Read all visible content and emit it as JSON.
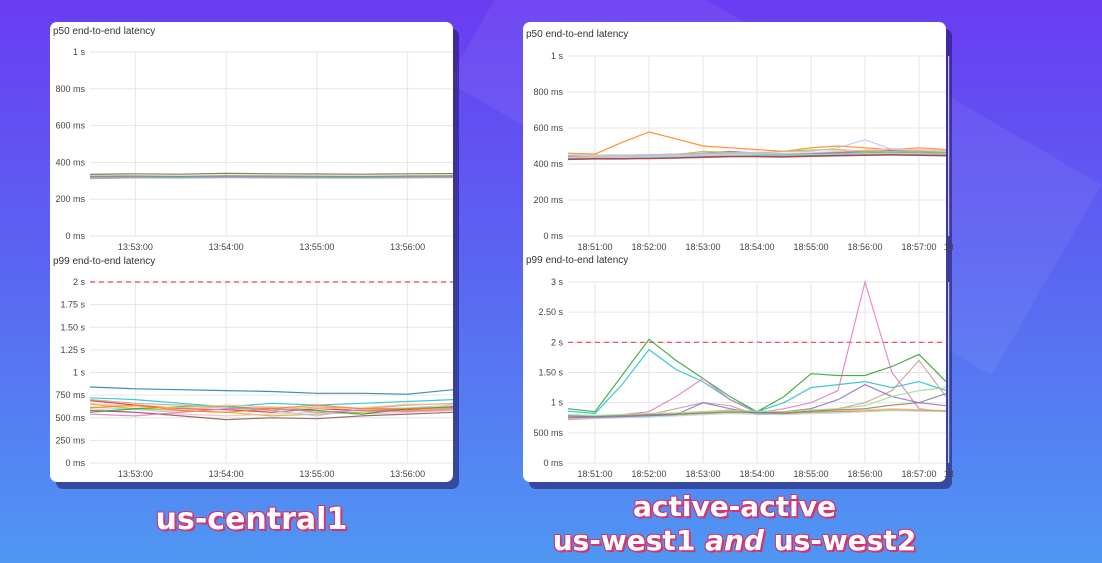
{
  "captions": {
    "left": "us-central1",
    "right_line1": "active-active",
    "right_line2_a": "us-west1",
    "right_line2_and": "and",
    "right_line2_b": "us-west2"
  },
  "colors": [
    "#8c564b",
    "#1f77b4",
    "#ff7f0e",
    "#2ca02c",
    "#d62728",
    "#9467bd",
    "#17becf",
    "#bcbd22",
    "#7f7f7f",
    "#e377c2",
    "#aec7e8",
    "#98df8a",
    "#c49c94",
    "#f7b6d2",
    "#9edae5",
    "#ffbb78"
  ],
  "chart_data": [
    {
      "id": "l1",
      "type": "line",
      "title": "p50 end-to-end latency",
      "xlabel": "",
      "ylabel": "",
      "x": [
        "13:52:30",
        "13:53:00",
        "13:53:30",
        "13:54:00",
        "13:54:30",
        "13:55:00",
        "13:55:30",
        "13:56:00",
        "13:56:30"
      ],
      "xticks": [
        "13:53:00",
        "13:54:00",
        "13:55:00",
        "13:56:00"
      ],
      "yticks": [
        0,
        200,
        400,
        600,
        800,
        1000
      ],
      "yticklabels": [
        "0 ms",
        "200 ms",
        "400 ms",
        "600 ms",
        "800 ms",
        "1 s"
      ],
      "ylim": [
        0,
        1000
      ],
      "threshold": null,
      "series": [
        {
          "values": [
            335,
            338,
            336,
            340,
            338,
            337,
            336,
            338,
            339
          ]
        },
        {
          "values": [
            325,
            326,
            324,
            327,
            326,
            325,
            324,
            326,
            327
          ]
        },
        {
          "values": [
            320,
            322,
            321,
            323,
            322,
            321,
            320,
            322,
            323
          ]
        },
        {
          "values": [
            318,
            319,
            317,
            320,
            319,
            318,
            317,
            319,
            320
          ]
        },
        {
          "values": [
            312,
            316,
            315,
            317,
            316,
            315,
            314,
            316,
            318
          ]
        }
      ]
    },
    {
      "id": "l2",
      "type": "line",
      "title": "p99 end-to-end latency",
      "xlabel": "",
      "ylabel": "",
      "x": [
        "13:52:30",
        "13:53:00",
        "13:53:30",
        "13:54:00",
        "13:54:30",
        "13:55:00",
        "13:55:30",
        "13:56:00",
        "13:56:30"
      ],
      "xticks": [
        "13:53:00",
        "13:54:00",
        "13:55:00",
        "13:56:00"
      ],
      "yticks": [
        0,
        250,
        500,
        750,
        1000,
        1250,
        1500,
        1750,
        2000
      ],
      "yticklabels": [
        "0 ms",
        "250 ms",
        "500 ms",
        "750 ms",
        "1 s",
        "1.25 s",
        "1.50 s",
        "1.75 s",
        "2 s"
      ],
      "ylim": [
        0,
        2000
      ],
      "threshold": 2000,
      "series": [
        {
          "values": [
            840,
            820,
            810,
            800,
            790,
            770,
            770,
            760,
            810
          ]
        },
        {
          "values": [
            690,
            640,
            600,
            590,
            560,
            600,
            580,
            590,
            620
          ]
        },
        {
          "values": [
            650,
            600,
            580,
            560,
            520,
            540,
            560,
            580,
            600
          ]
        },
        {
          "values": [
            620,
            590,
            560,
            600,
            580,
            520,
            600,
            610,
            640
          ]
        },
        {
          "values": [
            600,
            560,
            540,
            520,
            540,
            560,
            540,
            560,
            580
          ]
        },
        {
          "values": [
            580,
            560,
            520,
            480,
            500,
            490,
            520,
            540,
            560
          ]
        },
        {
          "values": [
            560,
            600,
            620,
            620,
            600,
            580,
            540,
            600,
            620
          ]
        },
        {
          "values": [
            720,
            700,
            660,
            620,
            660,
            640,
            660,
            680,
            700
          ]
        },
        {
          "values": [
            540,
            520,
            560,
            600,
            610,
            560,
            580,
            570,
            590
          ]
        },
        {
          "values": [
            700,
            660,
            640,
            620,
            580,
            620,
            600,
            640,
            660
          ]
        },
        {
          "values": [
            660,
            620,
            610,
            640,
            620,
            600,
            610,
            650,
            650
          ]
        },
        {
          "values": [
            610,
            640,
            580,
            560,
            600,
            640,
            600,
            600,
            610
          ]
        }
      ]
    },
    {
      "id": "r1",
      "type": "line",
      "title": "p50 end-to-end latency",
      "xlabel": "",
      "ylabel": "",
      "x": [
        "18:50:30",
        "18:51:00",
        "18:51:30",
        "18:52:00",
        "18:52:30",
        "18:53:00",
        "18:53:30",
        "18:54:00",
        "18:54:30",
        "18:55:00",
        "18:55:30",
        "18:56:00",
        "18:56:30",
        "18:57:00",
        "18:57:30"
      ],
      "xticks": [
        "18:51:00",
        "18:52:00",
        "18:53:00",
        "18:54:00",
        "18:55:00",
        "18:56:00",
        "18:57:00",
        "18"
      ],
      "yticks": [
        0,
        200,
        400,
        600,
        800,
        1000
      ],
      "yticklabels": [
        "0 ms",
        "200 ms",
        "400 ms",
        "600 ms",
        "800 ms",
        "1 s"
      ],
      "ylim": [
        0,
        1000
      ],
      "threshold": null,
      "series": [
        {
          "values": [
            460,
            455,
            520,
            578,
            540,
            500,
            490,
            480,
            470,
            490,
            500,
            490,
            480,
            490,
            480
          ]
        },
        {
          "values": [
            445,
            440,
            445,
            450,
            455,
            460,
            470,
            460,
            455,
            460,
            465,
            470,
            475,
            470,
            465
          ]
        },
        {
          "values": [
            440,
            438,
            440,
            445,
            450,
            455,
            460,
            458,
            455,
            456,
            460,
            462,
            465,
            462,
            460
          ]
        },
        {
          "values": [
            435,
            436,
            440,
            440,
            442,
            448,
            450,
            452,
            450,
            452,
            455,
            458,
            460,
            458,
            455
          ]
        },
        {
          "values": [
            430,
            432,
            435,
            438,
            440,
            442,
            445,
            448,
            446,
            448,
            452,
            455,
            458,
            455,
            452
          ]
        },
        {
          "values": [
            428,
            430,
            430,
            432,
            435,
            440,
            442,
            444,
            442,
            445,
            448,
            450,
            452,
            450,
            448
          ]
        },
        {
          "values": [
            425,
            428,
            428,
            430,
            432,
            436,
            440,
            440,
            438,
            442,
            445,
            448,
            450,
            448,
            445
          ]
        },
        {
          "values": [
            440,
            442,
            445,
            448,
            452,
            470,
            465,
            460,
            470,
            478,
            480,
            470,
            468,
            470,
            462
          ]
        },
        {
          "values": [
            450,
            450,
            450,
            452,
            455,
            458,
            462,
            465,
            468,
            470,
            490,
            535,
            480,
            475,
            470
          ]
        },
        {
          "values": [
            438,
            440,
            442,
            445,
            448,
            452,
            455,
            460,
            458,
            462,
            470,
            478,
            485,
            480,
            475
          ]
        }
      ]
    },
    {
      "id": "r2",
      "type": "line",
      "title": "p99 end-to-end latency",
      "xlabel": "",
      "ylabel": "",
      "x": [
        "18:50:30",
        "18:51:00",
        "18:51:30",
        "18:52:00",
        "18:52:30",
        "18:53:00",
        "18:53:30",
        "18:54:00",
        "18:54:30",
        "18:55:00",
        "18:55:30",
        "18:56:00",
        "18:56:30",
        "18:57:00",
        "18:57:30"
      ],
      "xticks": [
        "18:51:00",
        "18:52:00",
        "18:53:00",
        "18:54:00",
        "18:55:00",
        "18:56:00",
        "18:57:00",
        "18"
      ],
      "yticks": [
        0,
        500,
        1000,
        1500,
        2000,
        2500,
        3000
      ],
      "yticklabels": [
        "0 ms",
        "500 ms",
        "1 s",
        "1.50 s",
        "2 s",
        "2.50 s",
        "3 s"
      ],
      "ylim": [
        0,
        3000
      ],
      "threshold": 2000,
      "series": [
        {
          "values": [
            900,
            850,
            1450,
            2050,
            1700,
            1400,
            1100,
            850,
            1100,
            1480,
            1450,
            1450,
            1600,
            1800,
            1350
          ]
        },
        {
          "values": [
            860,
            820,
            1300,
            1880,
            1550,
            1350,
            1050,
            850,
            1000,
            1250,
            1300,
            1350,
            1250,
            1350,
            1200
          ]
        },
        {
          "values": [
            780,
            760,
            800,
            850,
            1100,
            1400,
            1050,
            830,
            900,
            1000,
            1200,
            3000,
            1500,
            900,
            850
          ]
        },
        {
          "values": [
            760,
            750,
            780,
            800,
            900,
            1000,
            950,
            800,
            820,
            850,
            900,
            1000,
            1200,
            1700,
            1100
          ]
        },
        {
          "values": [
            740,
            760,
            780,
            800,
            820,
            850,
            880,
            840,
            830,
            850,
            860,
            880,
            900,
            880,
            870
          ]
        },
        {
          "values": [
            720,
            740,
            760,
            790,
            800,
            820,
            840,
            830,
            820,
            840,
            850,
            860,
            880,
            870,
            860
          ]
        },
        {
          "values": [
            750,
            760,
            770,
            780,
            800,
            1000,
            900,
            820,
            850,
            900,
            1050,
            1300,
            1100,
            1000,
            950
          ]
        },
        {
          "values": [
            780,
            770,
            790,
            800,
            810,
            830,
            850,
            840,
            830,
            860,
            880,
            900,
            960,
            1000,
            1150
          ]
        },
        {
          "values": [
            800,
            790,
            800,
            820,
            830,
            850,
            870,
            860,
            850,
            880,
            900,
            950,
            1100,
            1200,
            1250
          ]
        },
        {
          "values": [
            730,
            740,
            750,
            760,
            780,
            800,
            820,
            810,
            800,
            820,
            830,
            850,
            870,
            860,
            850
          ]
        }
      ]
    }
  ]
}
